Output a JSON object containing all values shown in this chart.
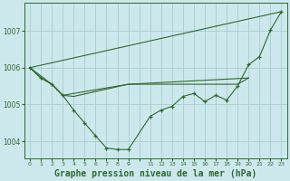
{
  "background_color": "#cde8ec",
  "grid_color": "#a8cdd0",
  "line_color": "#2d6a2d",
  "title": "Graphe pression niveau de la mer (hPa)",
  "title_fontsize": 7,
  "xlim": [
    -0.5,
    23.5
  ],
  "ylim": [
    1003.55,
    1007.75
  ],
  "yticks": [
    1004,
    1005,
    1006,
    1007
  ],
  "xtick_labels": [
    "0",
    "1",
    "2",
    "3",
    "4",
    "5",
    "6",
    "7",
    "8",
    "9",
    "",
    "11",
    "12",
    "13",
    "14",
    "15",
    "16",
    "17",
    "18",
    "19",
    "20",
    "21",
    "22",
    "23"
  ],
  "series1_x": [
    0,
    1,
    2,
    3,
    4,
    5,
    6,
    7,
    8,
    9,
    11,
    12,
    13,
    14,
    15,
    16,
    17,
    18,
    19,
    20,
    21,
    22,
    23
  ],
  "series1_y": [
    1006.0,
    1005.72,
    1005.55,
    1005.25,
    1004.85,
    1004.5,
    1004.15,
    1003.82,
    1003.78,
    1003.78,
    1004.68,
    1004.85,
    1004.95,
    1005.22,
    1005.3,
    1005.08,
    1005.25,
    1005.12,
    1005.5,
    1006.08,
    1006.3,
    1007.02,
    1007.52
  ],
  "series2_x": [
    0,
    1,
    2,
    3,
    9,
    10,
    11,
    12,
    13,
    14,
    15,
    16,
    17,
    18,
    19,
    20
  ],
  "series2_y": [
    1006.0,
    1005.72,
    1005.55,
    1005.25,
    1005.55,
    1005.55,
    1005.55,
    1005.55,
    1005.55,
    1005.55,
    1005.55,
    1005.55,
    1005.55,
    1005.55,
    1005.55,
    1005.72
  ],
  "series3_x": [
    0,
    23
  ],
  "series3_y": [
    1006.0,
    1007.52
  ],
  "series4_x": [
    0,
    2,
    3,
    4,
    9,
    20
  ],
  "series4_y": [
    1006.0,
    1005.55,
    1005.25,
    1005.22,
    1005.55,
    1005.72
  ]
}
